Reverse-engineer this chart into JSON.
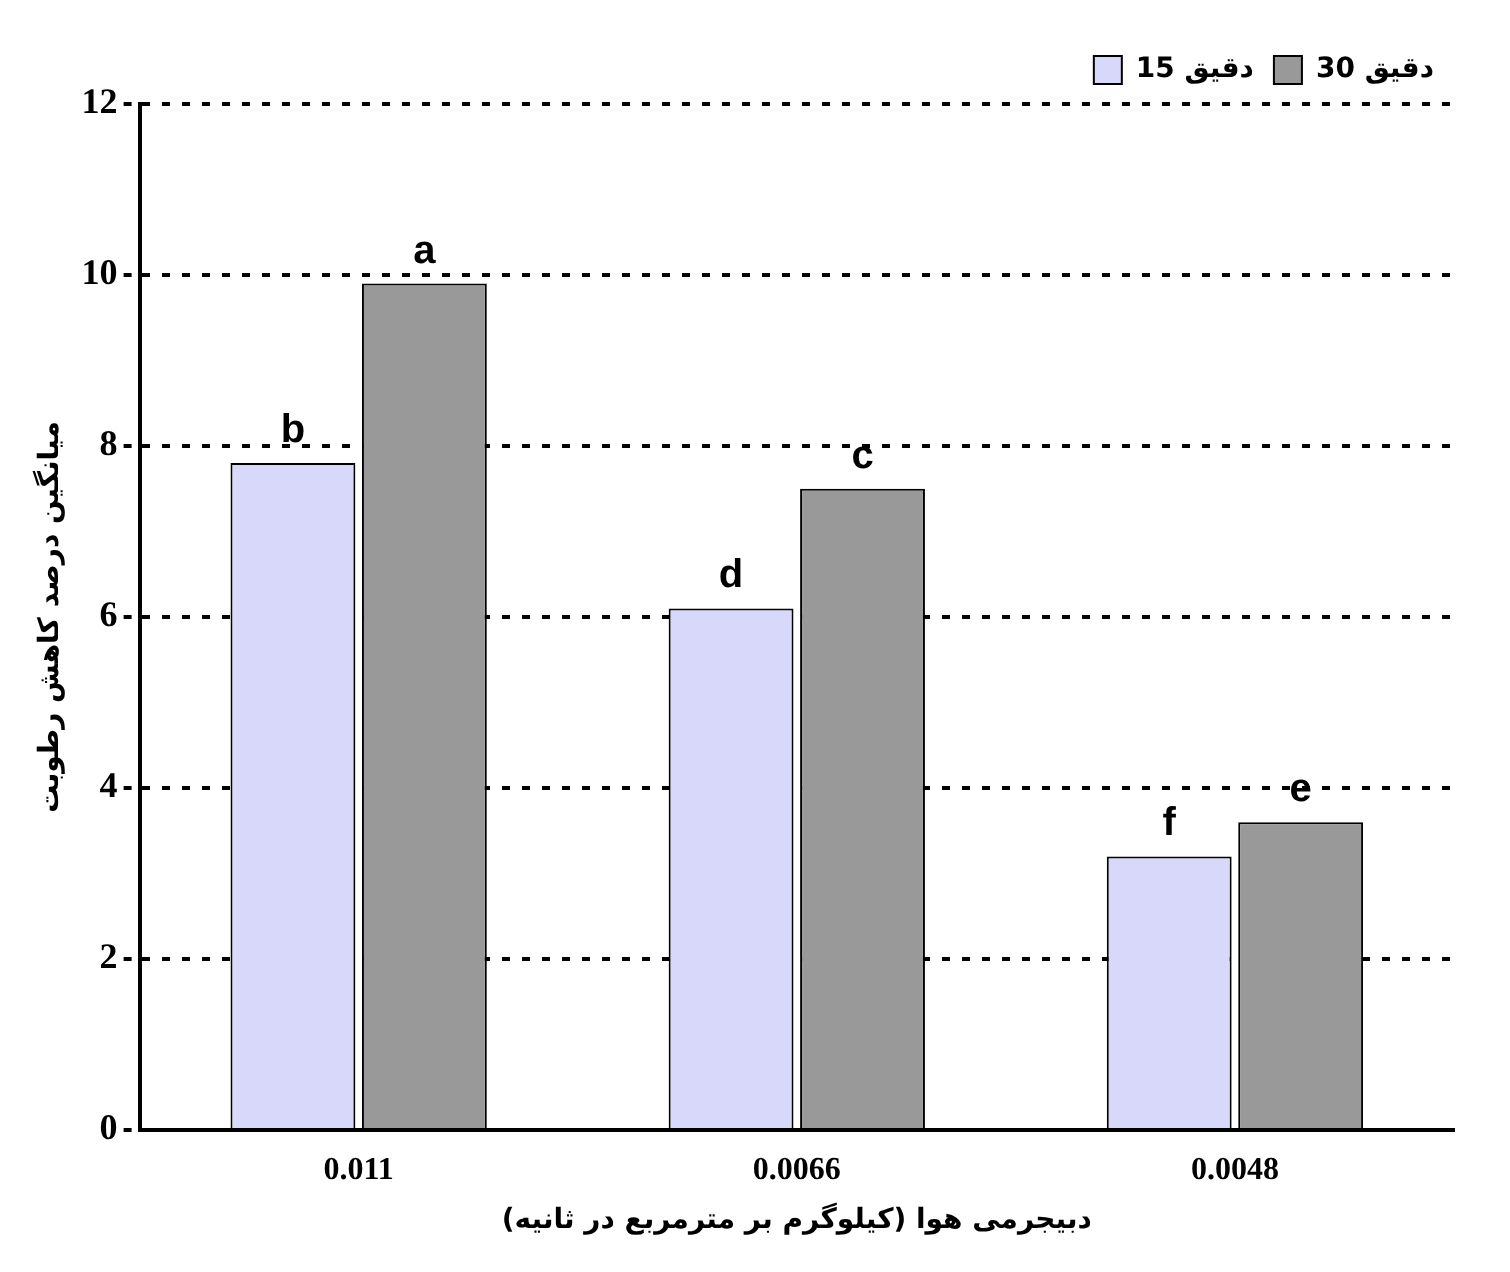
{
  "chart_data": {
    "type": "bar",
    "xlabel": "دبیجرمی هوا (کیلوگرم بر مترمربع در ثانیه)",
    "ylabel": "میانگین درصد کاهش رطوبت",
    "categories": [
      "0.011",
      "0.0066",
      "0.0048"
    ],
    "series": [
      {
        "name": "دقیق 15",
        "color": "#d8d8fa",
        "values": [
          7.8,
          6.1,
          3.2
        ],
        "value_labels": [
          "b",
          "d",
          "f"
        ]
      },
      {
        "name": "دقیق 30",
        "color": "#999999",
        "values": [
          9.9,
          7.5,
          3.6
        ],
        "value_labels": [
          "a",
          "c",
          "e"
        ]
      }
    ],
    "ylim": [
      0,
      12
    ],
    "yticks": [
      0,
      2,
      4,
      6,
      8,
      10,
      12
    ],
    "grid": "y",
    "legend": "top right"
  }
}
